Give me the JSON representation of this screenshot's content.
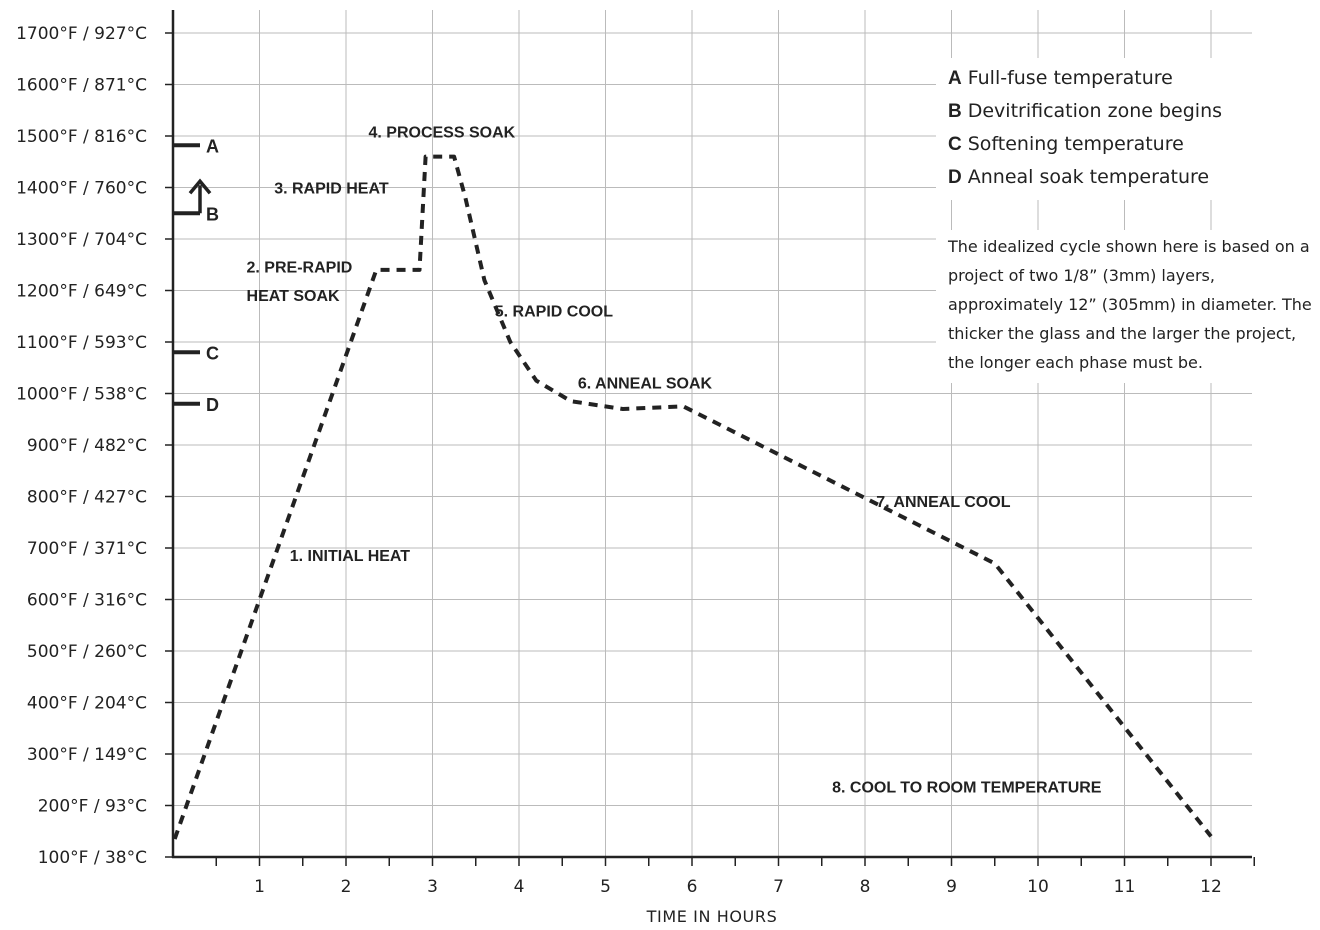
{
  "chart_data": {
    "type": "line",
    "xlabel": "TIME IN HOURS",
    "ylabel": "",
    "xlim": [
      0,
      12.5
    ],
    "ylim": [
      100,
      1700
    ],
    "x_ticks": [
      "1",
      "2",
      "3",
      "4",
      "5",
      "6",
      "7",
      "8",
      "9",
      "10",
      "11",
      "12"
    ],
    "y_ticks": [
      {
        "v": 100,
        "label": "100°F / 38°C"
      },
      {
        "v": 200,
        "label": "200°F / 93°C"
      },
      {
        "v": 300,
        "label": "300°F / 149°C"
      },
      {
        "v": 400,
        "label": "400°F / 204°C"
      },
      {
        "v": 500,
        "label": "500°F / 260°C"
      },
      {
        "v": 600,
        "label": "600°F / 316°C"
      },
      {
        "v": 700,
        "label": "700°F / 371°C"
      },
      {
        "v": 800,
        "label": "800°F / 427°C"
      },
      {
        "v": 900,
        "label": "900°F / 482°C"
      },
      {
        "v": 1000,
        "label": "1000°F / 538°C"
      },
      {
        "v": 1100,
        "label": "1100°F / 593°C"
      },
      {
        "v": 1200,
        "label": "1200°F / 649°C"
      },
      {
        "v": 1300,
        "label": "1300°F / 704°C"
      },
      {
        "v": 1400,
        "label": "1400°F / 760°C"
      },
      {
        "v": 1500,
        "label": "1500°F / 816°C"
      },
      {
        "v": 1600,
        "label": "1600°F / 871°C"
      },
      {
        "v": 1700,
        "label": "1700°F / 927°C"
      }
    ],
    "grid": true,
    "line_style": "dashed",
    "series": [
      {
        "points": [
          [
            0.02,
            135
          ],
          [
            2.35,
            1240
          ],
          [
            2.85,
            1240
          ],
          [
            2.92,
            1460
          ],
          [
            3.25,
            1460
          ],
          [
            3.38,
            1380
          ],
          [
            3.6,
            1220
          ],
          [
            3.9,
            1100
          ],
          [
            4.2,
            1025
          ],
          [
            4.6,
            985
          ],
          [
            5.2,
            970
          ],
          [
            5.9,
            975
          ],
          [
            9.5,
            670
          ],
          [
            12.0,
            140
          ]
        ]
      }
    ],
    "phases": [
      {
        "label": "1. INITIAL HEAT",
        "x": 1.35,
        "y": 675
      },
      {
        "label": "2. PRE-RAPID",
        "x": 0.85,
        "y": 1235
      },
      {
        "label": "HEAT SOAK",
        "x": 0.85,
        "y": 1180
      },
      {
        "label": "3. RAPID HEAT",
        "x": 1.17,
        "y": 1388
      },
      {
        "label": "4. PROCESS SOAK",
        "x": 2.26,
        "y": 1497
      },
      {
        "label": "5. RAPID COOL",
        "x": 3.72,
        "y": 1150
      },
      {
        "label": "6. ANNEAL SOAK",
        "x": 4.68,
        "y": 1010
      },
      {
        "label": "7. ANNEAL COOL",
        "x": 8.13,
        "y": 780
      },
      {
        "label": "8. COOL TO ROOM TEMPERATURE",
        "x": 7.62,
        "y": 225
      }
    ],
    "markers": [
      {
        "label": "A",
        "y": 1482
      },
      {
        "label": "B",
        "y": 1350
      },
      {
        "label": "C",
        "y": 1080
      },
      {
        "label": "D",
        "y": 980
      }
    ],
    "legend": [
      {
        "key": "A",
        "text": "Full-fuse temperature"
      },
      {
        "key": "B",
        "text": "Devitrification zone begins"
      },
      {
        "key": "C",
        "text": "Softening temperature"
      },
      {
        "key": "D",
        "text": "Anneal soak temperature"
      }
    ],
    "note": "The idealized cycle shown here is based on a project of two 1/8” (3mm) layers, approximately 12” (305mm) in diameter. The thicker the glass and the larger the project, the longer each phase must be."
  }
}
